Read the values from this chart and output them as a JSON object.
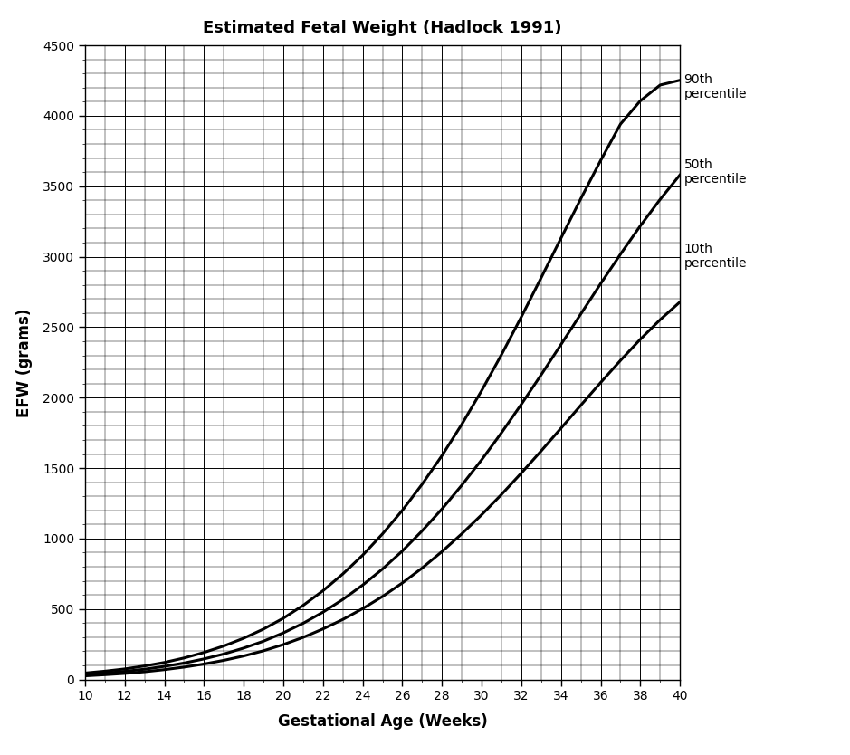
{
  "title": "Estimated Fetal Weight (Hadlock 1991)",
  "xlabel": "Gestational Age (Weeks)",
  "ylabel": "EFW (grams)",
  "xlim": [
    10,
    40
  ],
  "ylim": [
    0,
    4500
  ],
  "xticks": [
    10,
    12,
    14,
    16,
    18,
    20,
    22,
    24,
    26,
    28,
    30,
    32,
    34,
    36,
    38,
    40
  ],
  "yticks": [
    0,
    500,
    1000,
    1500,
    2000,
    2500,
    3000,
    3500,
    4000,
    4500
  ],
  "line_color": "#000000",
  "background_color": "#ffffff",
  "grid_color": "#000000",
  "title_fontsize": 13,
  "axis_label_fontsize": 12,
  "label_fontsize": 10,
  "percentile_10": [
    [
      10,
      26
    ],
    [
      11,
      34
    ],
    [
      12,
      43
    ],
    [
      13,
      55
    ],
    [
      14,
      70
    ],
    [
      15,
      88
    ],
    [
      16,
      110
    ],
    [
      17,
      136
    ],
    [
      18,
      167
    ],
    [
      19,
      204
    ],
    [
      20,
      248
    ],
    [
      21,
      299
    ],
    [
      22,
      359
    ],
    [
      23,
      426
    ],
    [
      24,
      503
    ],
    [
      25,
      589
    ],
    [
      26,
      685
    ],
    [
      27,
      791
    ],
    [
      28,
      908
    ],
    [
      29,
      1034
    ],
    [
      30,
      1169
    ],
    [
      31,
      1313
    ],
    [
      32,
      1465
    ],
    [
      33,
      1622
    ],
    [
      34,
      1783
    ],
    [
      35,
      1946
    ],
    [
      36,
      2107
    ],
    [
      37,
      2264
    ],
    [
      38,
      2414
    ],
    [
      39,
      2553
    ],
    [
      40,
      2679
    ]
  ],
  "percentile_50": [
    [
      10,
      35
    ],
    [
      11,
      45
    ],
    [
      12,
      58
    ],
    [
      13,
      73
    ],
    [
      14,
      93
    ],
    [
      15,
      117
    ],
    [
      16,
      146
    ],
    [
      17,
      181
    ],
    [
      18,
      223
    ],
    [
      19,
      272
    ],
    [
      20,
      331
    ],
    [
      21,
      399
    ],
    [
      22,
      478
    ],
    [
      23,
      568
    ],
    [
      24,
      670
    ],
    [
      25,
      784
    ],
    [
      26,
      912
    ],
    [
      27,
      1055
    ],
    [
      28,
      1210
    ],
    [
      29,
      1379
    ],
    [
      30,
      1559
    ],
    [
      31,
      1751
    ],
    [
      32,
      1953
    ],
    [
      33,
      2162
    ],
    [
      34,
      2377
    ],
    [
      35,
      2594
    ],
    [
      36,
      2809
    ],
    [
      37,
      3018
    ],
    [
      38,
      3219
    ],
    [
      39,
      3407
    ],
    [
      40,
      3581
    ]
  ],
  "percentile_90": [
    [
      10,
      46
    ],
    [
      11,
      59
    ],
    [
      12,
      75
    ],
    [
      13,
      96
    ],
    [
      14,
      121
    ],
    [
      15,
      153
    ],
    [
      16,
      192
    ],
    [
      17,
      238
    ],
    [
      18,
      293
    ],
    [
      19,
      358
    ],
    [
      20,
      435
    ],
    [
      21,
      526
    ],
    [
      22,
      630
    ],
    [
      23,
      749
    ],
    [
      24,
      882
    ],
    [
      25,
      1033
    ],
    [
      26,
      1200
    ],
    [
      27,
      1386
    ],
    [
      28,
      1589
    ],
    [
      29,
      1811
    ],
    [
      30,
      2050
    ],
    [
      31,
      2305
    ],
    [
      32,
      2573
    ],
    [
      33,
      2851
    ],
    [
      34,
      3132
    ],
    [
      35,
      3412
    ],
    [
      36,
      3683
    ],
    [
      37,
      3941
    ],
    [
      38,
      4106
    ],
    [
      39,
      4218
    ],
    [
      40,
      4252
    ]
  ],
  "label_90_text": "90th\npercentile",
  "label_50_text": "50th\npercentile",
  "label_10_text": "10th\npercentile"
}
